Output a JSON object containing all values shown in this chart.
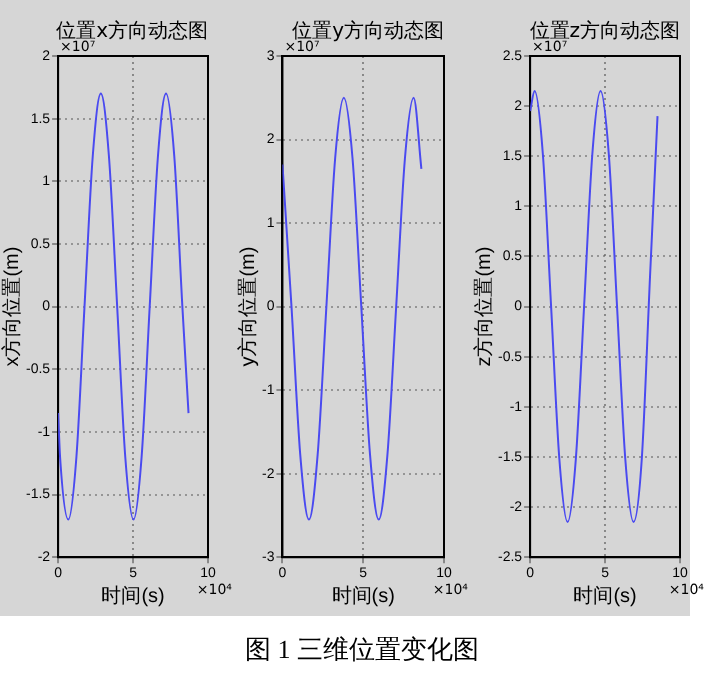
{
  "chart_data": [
    {
      "type": "line",
      "title": "位置x方向动态图",
      "xlabel": "时间(s)",
      "ylabel": "x方向位置(m)",
      "color": "#4a4af0",
      "x": [
        0,
        0.13,
        0.68,
        1.22,
        1.76,
        2.31,
        2.85,
        3.39,
        3.94,
        4.48,
        5.03,
        5.57,
        6.11,
        6.66,
        7.2,
        7.75,
        8.29,
        8.7
      ],
      "values": [
        -0.85,
        -1.2,
        -1.7,
        -1.2,
        0,
        1.2,
        1.7,
        1.2,
        0,
        -1.2,
        -1.7,
        -1.2,
        0,
        1.2,
        1.7,
        1.2,
        0,
        -0.85
      ],
      "xlim": [
        0,
        10
      ],
      "xticks": [
        0,
        5,
        10
      ],
      "ylim": [
        -2,
        2
      ],
      "yticks": [
        -2,
        -1.5,
        -1,
        -0.5,
        0,
        0.5,
        1,
        1.5,
        2
      ],
      "grid": true,
      "annotations": [
        "×10⁷",
        "×10⁴",
        "图 1 三维位置变化图"
      ]
    },
    {
      "type": "line",
      "title": "位置y方向动态图",
      "xlabel": "时间(s)",
      "ylabel": "y方向位置(m)",
      "color": "#4a4af0",
      "x": [
        0,
        0.56,
        1.1,
        1.64,
        2.18,
        2.72,
        3.26,
        3.8,
        4.34,
        4.88,
        5.42,
        5.96,
        6.5,
        7.04,
        7.58,
        8.12,
        8.6
      ],
      "values": [
        1.7,
        0,
        -1.77,
        -2.55,
        -1.77,
        0,
        1.77,
        2.5,
        1.77,
        0,
        -1.77,
        -2.55,
        -1.77,
        0,
        1.77,
        2.5,
        1.65
      ],
      "xlim": [
        0,
        10
      ],
      "xticks": [
        0,
        5,
        10
      ],
      "ylim": [
        -3,
        3
      ],
      "yticks": [
        -3,
        -2,
        -1,
        0,
        1,
        2,
        3
      ],
      "grid": true,
      "annotations": [
        "×10⁷",
        "×10⁴"
      ]
    },
    {
      "type": "line",
      "title": "位置z方向动态图",
      "xlabel": "时间(s)",
      "ylabel": "z方向位置(m)",
      "color": "#4a4af0",
      "x": [
        0,
        0.3,
        0.85,
        1.4,
        1.95,
        2.5,
        3.05,
        3.6,
        4.15,
        4.7,
        5.25,
        5.8,
        6.35,
        6.9,
        7.45,
        8.0,
        8.5
      ],
      "values": [
        1.95,
        2.15,
        1.52,
        0,
        -1.52,
        -2.15,
        -1.52,
        0,
        1.52,
        2.15,
        1.52,
        0,
        -1.52,
        -2.15,
        -1.52,
        0.3,
        1.9
      ],
      "xlim": [
        0,
        10
      ],
      "xticks": [
        0,
        5,
        10
      ],
      "ylim": [
        -2.5,
        2.5
      ],
      "yticks": [
        -2.5,
        -2,
        -1.5,
        -1,
        -0.5,
        0,
        0.5,
        1,
        1.5,
        2,
        2.5
      ],
      "grid": true,
      "annotations": [
        "×10⁷",
        "×10⁴"
      ]
    }
  ]
}
